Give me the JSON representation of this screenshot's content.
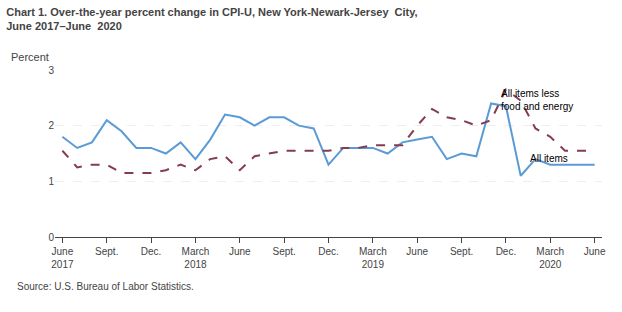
{
  "chart_data": {
    "type": "line",
    "title": "Chart 1. Over-the-year percent change in CPI-U, New York-Newark-Jersey  City,",
    "subtitle": "June 2017–June  2020",
    "ylabel": "Percent",
    "source": "Source: U.S. Bureau of Labor Statistics.",
    "categories": [
      "June\n2017",
      null,
      null,
      "Sept.",
      null,
      null,
      "Dec.",
      null,
      null,
      "March\n2018",
      null,
      null,
      "June",
      null,
      null,
      "Sept.",
      null,
      null,
      "Dec.",
      null,
      null,
      "March\n2019",
      null,
      null,
      "June",
      null,
      null,
      "Sept.",
      null,
      null,
      "Dec.",
      null,
      null,
      "March\n2020",
      null,
      null,
      "June"
    ],
    "series": [
      {
        "name": "All items",
        "color": "#5B9BD5",
        "line_style": "solid",
        "values": [
          1.8,
          1.6,
          1.7,
          2.1,
          1.9,
          1.6,
          1.6,
          1.5,
          1.7,
          1.4,
          1.75,
          2.2,
          2.15,
          2.0,
          2.15,
          2.15,
          2.0,
          1.95,
          1.3,
          1.6,
          1.6,
          1.6,
          1.5,
          1.7,
          1.75,
          1.8,
          1.4,
          1.5,
          1.45,
          2.4,
          2.35,
          1.1,
          1.4,
          1.3,
          1.3,
          1.3,
          1.3
        ]
      },
      {
        "name": "All items less food and energy",
        "color": "#833C52",
        "line_style": "dashed",
        "values": [
          1.55,
          1.25,
          1.3,
          1.3,
          1.15,
          1.15,
          1.15,
          1.2,
          1.3,
          1.2,
          1.4,
          1.45,
          1.2,
          1.45,
          1.5,
          1.55,
          1.55,
          1.55,
          1.55,
          1.6,
          1.6,
          1.65,
          1.65,
          1.65,
          2.0,
          2.3,
          2.15,
          2.1,
          2.0,
          2.1,
          2.65,
          2.45,
          1.95,
          1.8,
          1.55,
          1.55,
          1.55
        ]
      }
    ],
    "annotations": [
      {
        "text": "All items less\nfood and energy",
        "x": 29.5,
        "y": 2.72
      },
      {
        "text": "All items",
        "x": 31.5,
        "y": 1.55
      }
    ],
    "ylim": [
      0,
      3
    ],
    "yticks": [
      0,
      1,
      2,
      3
    ],
    "grid": true
  }
}
